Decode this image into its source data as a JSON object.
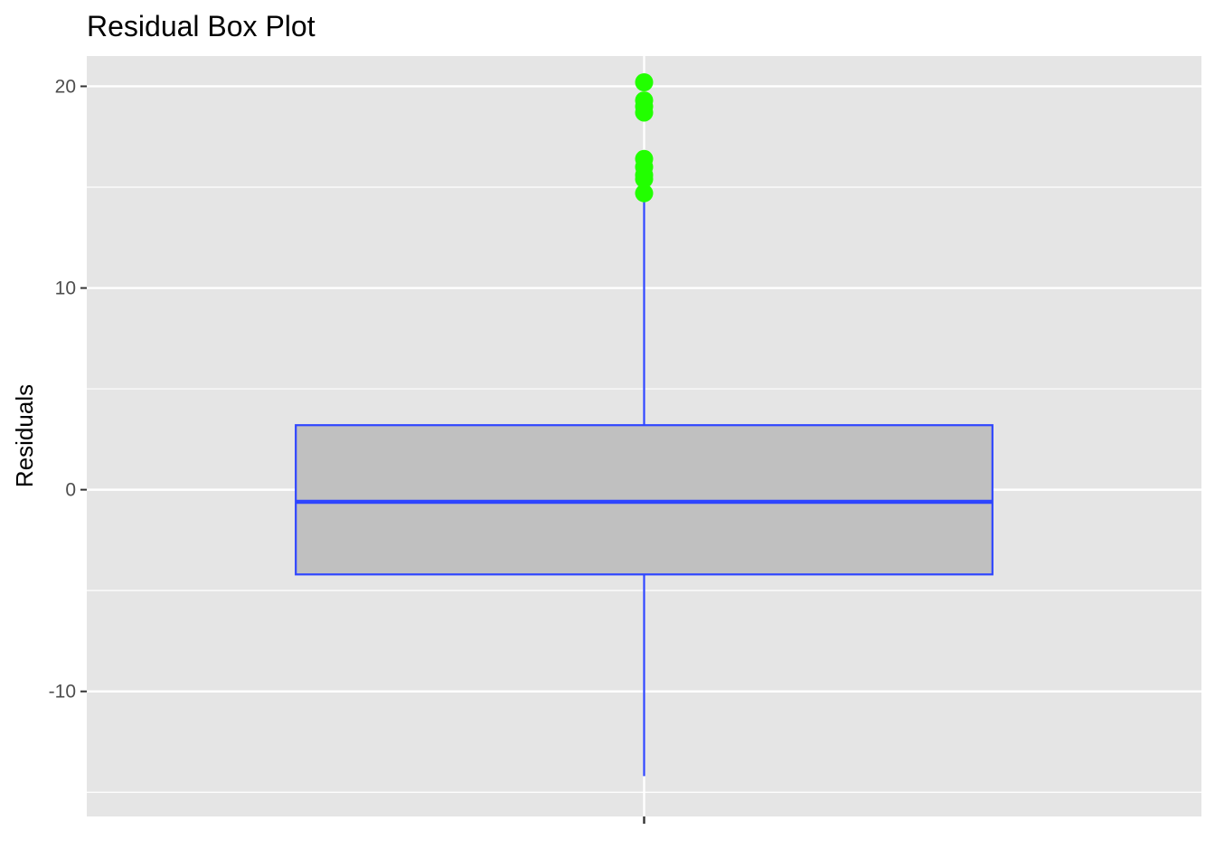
{
  "chart_data": {
    "type": "box",
    "title": "Residual Box Plot",
    "xlabel": "",
    "ylabel": "Residuals",
    "ylim": [
      -16.2,
      21.5
    ],
    "y_ticks": [
      -10,
      0,
      10,
      20
    ],
    "y_tick_labels": [
      "-10",
      "0",
      "10",
      "20"
    ],
    "x_tick_labels": [
      ""
    ],
    "grid": true,
    "legend": "none",
    "box": {
      "lower_whisker": -14.2,
      "q1": -4.2,
      "median": -0.6,
      "q3": 3.2,
      "upper_whisker": 14.4
    },
    "outliers": [
      20.2,
      19.3,
      19.0,
      18.7,
      16.4,
      16.0,
      15.6,
      15.4,
      14.7
    ],
    "colors": {
      "panel_background": "#e5e5e5",
      "grid": "#ffffff",
      "box_fill": "#c0c0c0",
      "box_line": "#2e45ff",
      "outlier": "#22ff00"
    }
  }
}
